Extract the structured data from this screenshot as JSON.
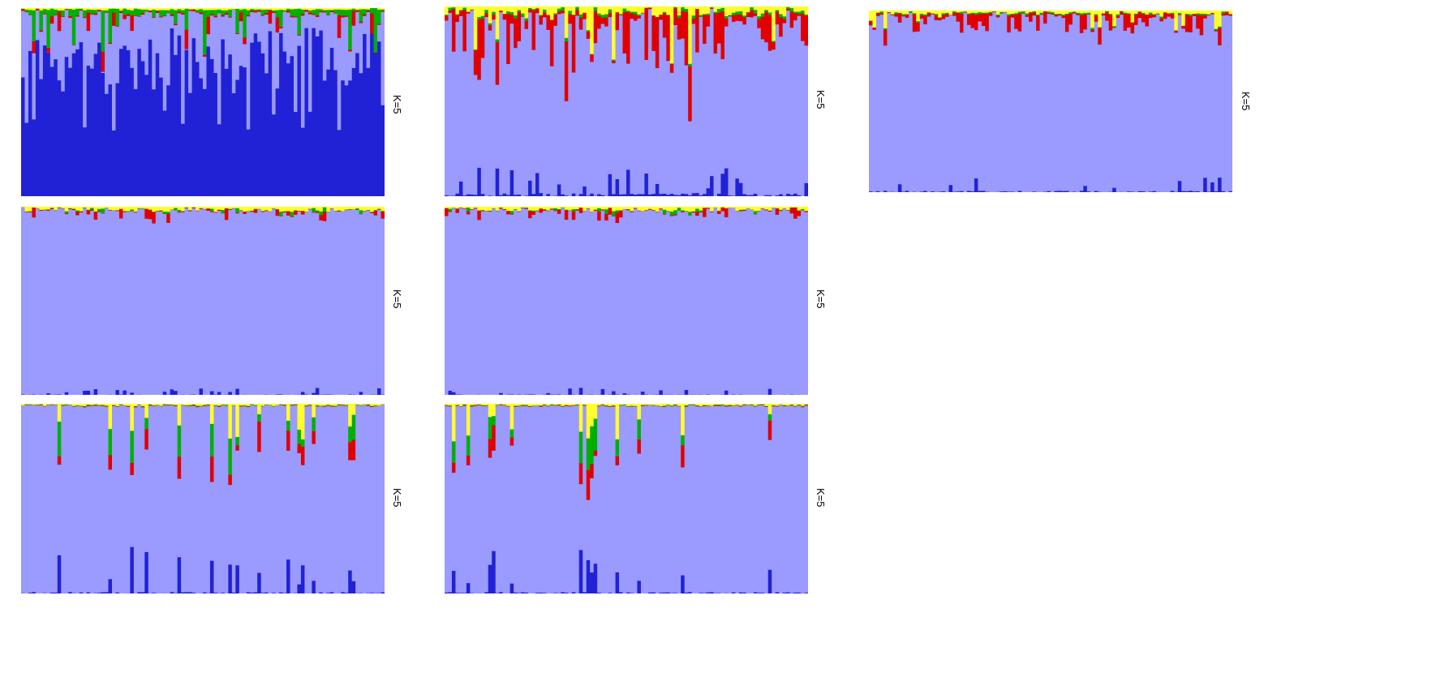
{
  "chart_data": {
    "type": "stacked-bar",
    "colors": {
      "dark_blue": "#2121d6",
      "light_blue": "#9a9aff",
      "red": "#e00000",
      "green": "#00b000",
      "yellow": "#ffff2a"
    },
    "stack_order": [
      "dark_blue",
      "light_blue",
      "red",
      "green",
      "yellow"
    ],
    "panels": [
      {
        "id": "p1",
        "label": "K=5",
        "n_bars": 100,
        "base_seed": 11,
        "profile": "darkblue_green"
      },
      {
        "id": "p2",
        "label": "K=5",
        "n_bars": 100,
        "base_seed": 23,
        "profile": "red_yellow"
      },
      {
        "id": "p3",
        "label": "K=5",
        "n_bars": 100,
        "base_seed": 37,
        "profile": "light_red"
      },
      {
        "id": "p4",
        "label": "K=5",
        "n_bars": 100,
        "base_seed": 41,
        "profile": "thin_top"
      },
      {
        "id": "p5",
        "label": "K=5",
        "n_bars": 100,
        "base_seed": 53,
        "profile": "thin_top"
      },
      {
        "id": "p6",
        "label": "K=5",
        "n_bars": 100,
        "base_seed": 67,
        "profile": "spikes"
      },
      {
        "id": "p7",
        "label": "K=5",
        "n_bars": 100,
        "base_seed": 71,
        "profile": "spikes"
      }
    ]
  }
}
